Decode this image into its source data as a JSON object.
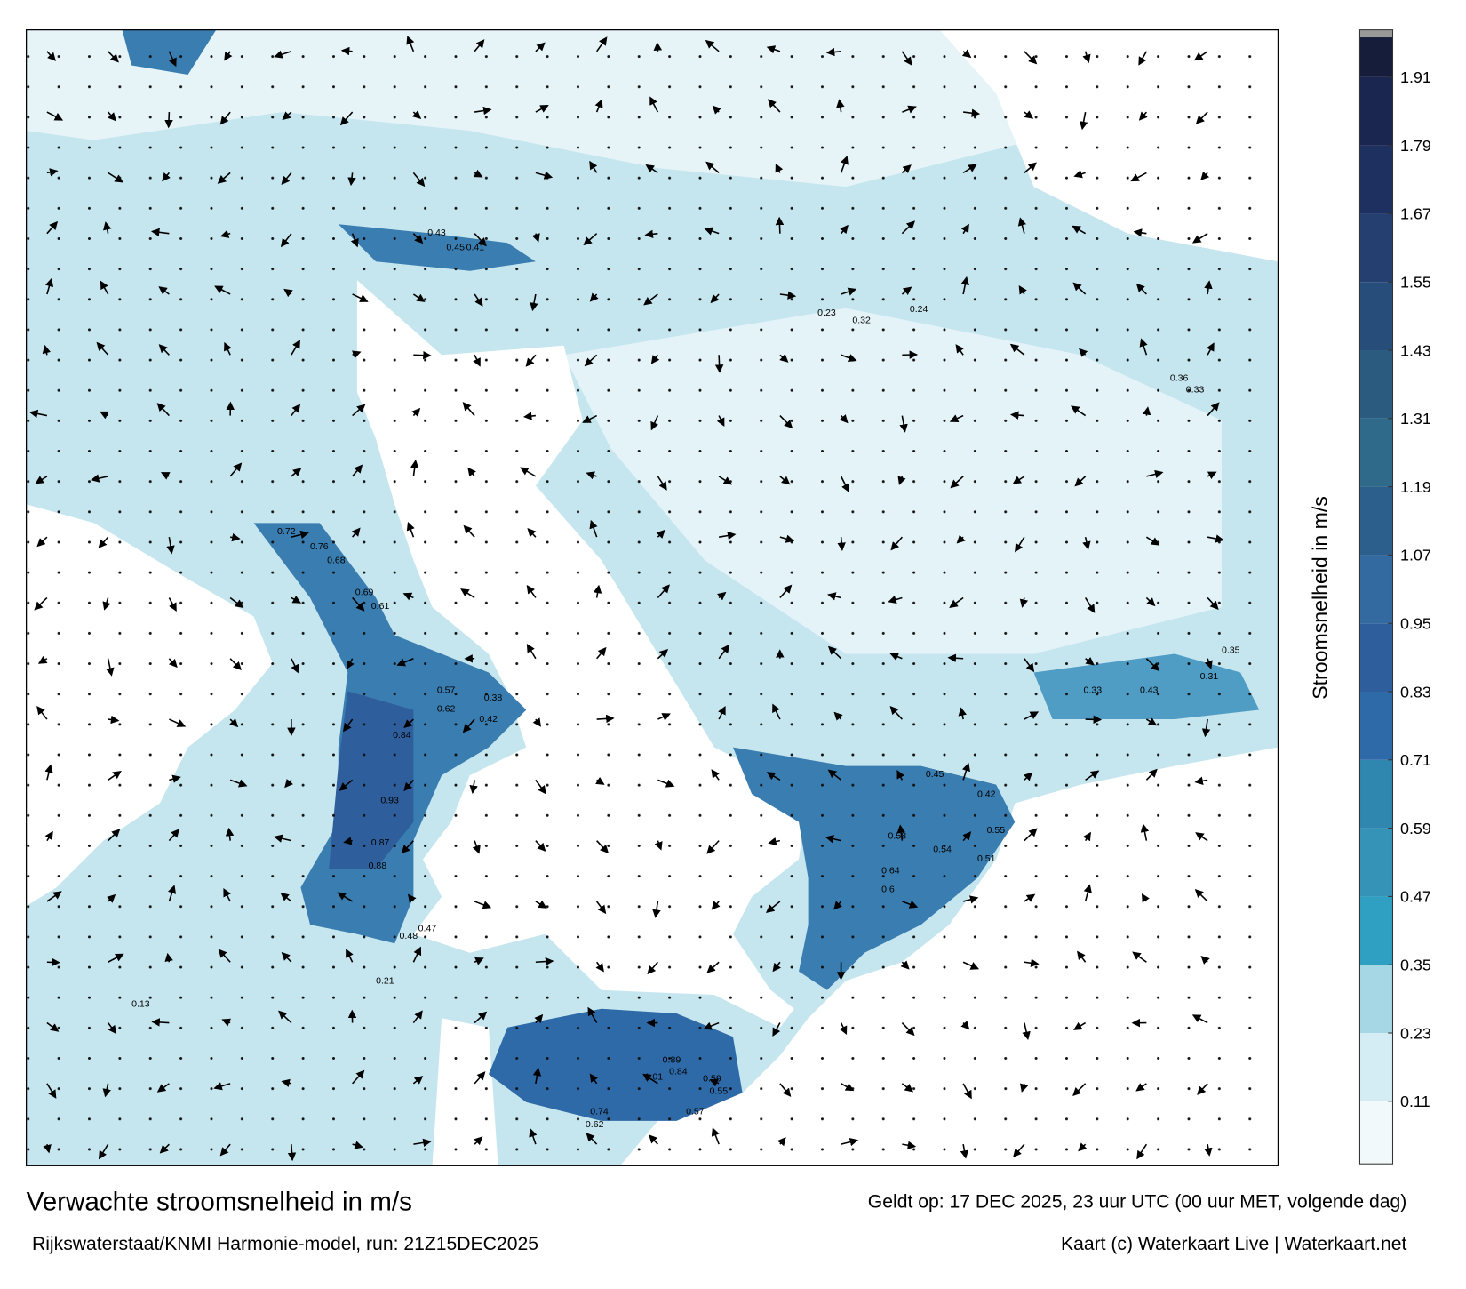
{
  "title": "Verwachte stroomsnelheid in m/s",
  "valid_time": "Geldt op: 17 DEC 2025, 23 uur UTC (00 uur MET, volgende dag)",
  "source": "Rijkswaterstaat/KNMI Harmonie-model, run: 21Z15DEC2025",
  "credit": "Kaart (c) Waterkaart Live | Waterkaart.net",
  "colorbar": {
    "label": "Stroomsnelheid in m/s",
    "lim": [
      0,
      1.98
    ],
    "ticks": [
      0.11,
      0.23,
      0.35,
      0.47,
      0.59,
      0.71,
      0.83,
      0.95,
      1.07,
      1.19,
      1.31,
      1.43,
      1.55,
      1.67,
      1.79,
      1.91
    ],
    "colors": [
      "#f2f9fb",
      "#d4ecf3",
      "#a6d7e5",
      "#2f9fc2",
      "#3593b8",
      "#2f86af",
      "#2f6aa8",
      "#2e5f9c",
      "#336a9f",
      "#2d5f8d",
      "#2f6a8a",
      "#2c5b80",
      "#274d7a",
      "#253f70",
      "#1e3060",
      "#1b2650",
      "#151d3a"
    ]
  },
  "map_labels": [
    "0.72",
    "0.76",
    "0.68",
    "0.69",
    "0.61",
    "0.57",
    "0.62",
    "0.84",
    "0.93",
    "0.87",
    "0.88",
    "0.42",
    "0.38",
    "0.48",
    "0.47",
    "0.21",
    "1.01",
    "0.89",
    "0.84",
    "0.74",
    "0.62",
    "0.57",
    "0.59",
    "0.55",
    "0.6",
    "0.64",
    "0.58",
    "0.54",
    "0.55",
    "0.51",
    "0.45",
    "0.42",
    "0.43",
    "0.33",
    "0.31",
    "0.35",
    "0.36",
    "0.33",
    "0.24",
    "0.32",
    "0.23",
    "0.45",
    "0.41",
    "0.43",
    "0.13"
  ]
}
